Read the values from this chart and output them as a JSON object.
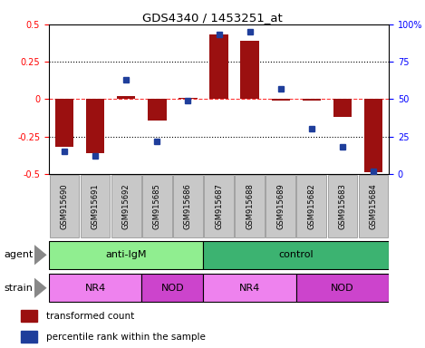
{
  "title": "GDS4340 / 1453251_at",
  "samples": [
    "GSM915690",
    "GSM915691",
    "GSM915692",
    "GSM915685",
    "GSM915686",
    "GSM915687",
    "GSM915688",
    "GSM915689",
    "GSM915682",
    "GSM915683",
    "GSM915684"
  ],
  "transformed_count": [
    -0.32,
    -0.36,
    0.02,
    -0.14,
    0.01,
    0.43,
    0.39,
    -0.01,
    -0.01,
    -0.12,
    -0.49
  ],
  "percentile_rank": [
    15,
    12,
    63,
    22,
    49,
    93,
    95,
    57,
    30,
    18,
    2
  ],
  "bar_color": "#9B1010",
  "dot_color": "#1F3E9B",
  "ylim_left": [
    -0.5,
    0.5
  ],
  "ylim_right": [
    0,
    100
  ],
  "yticks_left": [
    -0.5,
    -0.25,
    0,
    0.25,
    0.5
  ],
  "ytick_labels_left": [
    "-0.5",
    "-0.25",
    "0",
    "0.25",
    "0.5"
  ],
  "yticks_right": [
    0,
    25,
    50,
    75,
    100
  ],
  "ytick_labels_right": [
    "0",
    "25",
    "50",
    "75",
    "100%"
  ],
  "hlines_dotted": [
    -0.25,
    0.25
  ],
  "hline_dashed": 0,
  "agent_groups": [
    {
      "label": "anti-IgM",
      "start": 0,
      "end": 5,
      "color": "#90EE90"
    },
    {
      "label": "control",
      "start": 5,
      "end": 11,
      "color": "#3CB371"
    }
  ],
  "strain_groups": [
    {
      "label": "NR4",
      "start": 0,
      "end": 3,
      "color": "#EE82EE"
    },
    {
      "label": "NOD",
      "start": 3,
      "end": 5,
      "color": "#CC44CC"
    },
    {
      "label": "NR4",
      "start": 5,
      "end": 8,
      "color": "#EE82EE"
    },
    {
      "label": "NOD",
      "start": 8,
      "end": 11,
      "color": "#CC44CC"
    }
  ],
  "agent_label": "agent",
  "strain_label": "strain",
  "xtick_bg_color": "#C8C8C8",
  "legend_items": [
    {
      "label": "transformed count",
      "color": "#9B1010"
    },
    {
      "label": "percentile rank within the sample",
      "color": "#1F3E9B"
    }
  ]
}
